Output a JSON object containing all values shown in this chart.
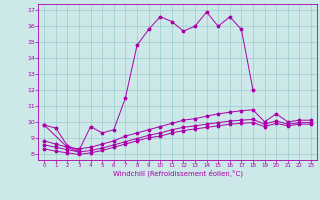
{
  "xlabel": "Windchill (Refroidissement éolien,°C)",
  "bg_color": "#cce8e8",
  "line_color": "#aa00aa",
  "grid_color": "#99cccc",
  "x_ticks": [
    0,
    1,
    2,
    3,
    4,
    5,
    6,
    7,
    8,
    9,
    10,
    11,
    12,
    13,
    14,
    15,
    16,
    17,
    18,
    19,
    20,
    21,
    22,
    23
  ],
  "y_ticks": [
    8,
    9,
    10,
    11,
    12,
    13,
    14,
    15,
    16,
    17
  ],
  "xlim": [
    -0.5,
    23.5
  ],
  "ylim": [
    7.6,
    17.4
  ],
  "series": [
    {
      "x": [
        0,
        1,
        2,
        3,
        4,
        5,
        6,
        7,
        8,
        9,
        10,
        11,
        12,
        13,
        14,
        15,
        16,
        17,
        18
      ],
      "y": [
        9.8,
        9.6,
        8.5,
        8.2,
        9.7,
        9.3,
        9.5,
        11.5,
        14.8,
        15.8,
        16.6,
        16.3,
        15.7,
        16.0,
        16.9,
        16.0,
        16.6,
        15.8,
        12.0
      ]
    },
    {
      "x": [
        0,
        2,
        3
      ],
      "y": [
        9.8,
        8.4,
        8.1
      ]
    },
    {
      "x": [
        0,
        1,
        2,
        3,
        4,
        5,
        6,
        7,
        8,
        9,
        10,
        11,
        12,
        13,
        14,
        15,
        16,
        17,
        18,
        19,
        20,
        21,
        22,
        23
      ],
      "y": [
        8.8,
        8.6,
        8.4,
        8.3,
        8.4,
        8.6,
        8.8,
        9.1,
        9.3,
        9.5,
        9.7,
        9.9,
        10.1,
        10.2,
        10.35,
        10.5,
        10.6,
        10.7,
        10.75,
        10.0,
        10.5,
        10.0,
        10.1,
        10.1
      ]
    },
    {
      "x": [
        0,
        1,
        2,
        3,
        4,
        5,
        6,
        7,
        8,
        9,
        10,
        11,
        12,
        13,
        14,
        15,
        16,
        17,
        18,
        19,
        20,
        21,
        22,
        23
      ],
      "y": [
        8.55,
        8.4,
        8.25,
        8.1,
        8.2,
        8.35,
        8.55,
        8.75,
        8.95,
        9.15,
        9.3,
        9.5,
        9.65,
        9.75,
        9.85,
        9.95,
        10.05,
        10.1,
        10.15,
        9.85,
        10.05,
        9.85,
        9.95,
        9.95
      ]
    },
    {
      "x": [
        0,
        1,
        2,
        3,
        4,
        5,
        6,
        7,
        8,
        9,
        10,
        11,
        12,
        13,
        14,
        15,
        16,
        17,
        18,
        19,
        20,
        21,
        22,
        23
      ],
      "y": [
        8.3,
        8.15,
        8.05,
        7.95,
        8.05,
        8.2,
        8.4,
        8.6,
        8.8,
        9.0,
        9.1,
        9.3,
        9.45,
        9.55,
        9.65,
        9.75,
        9.85,
        9.9,
        9.95,
        9.7,
        9.9,
        9.75,
        9.85,
        9.85
      ]
    }
  ]
}
